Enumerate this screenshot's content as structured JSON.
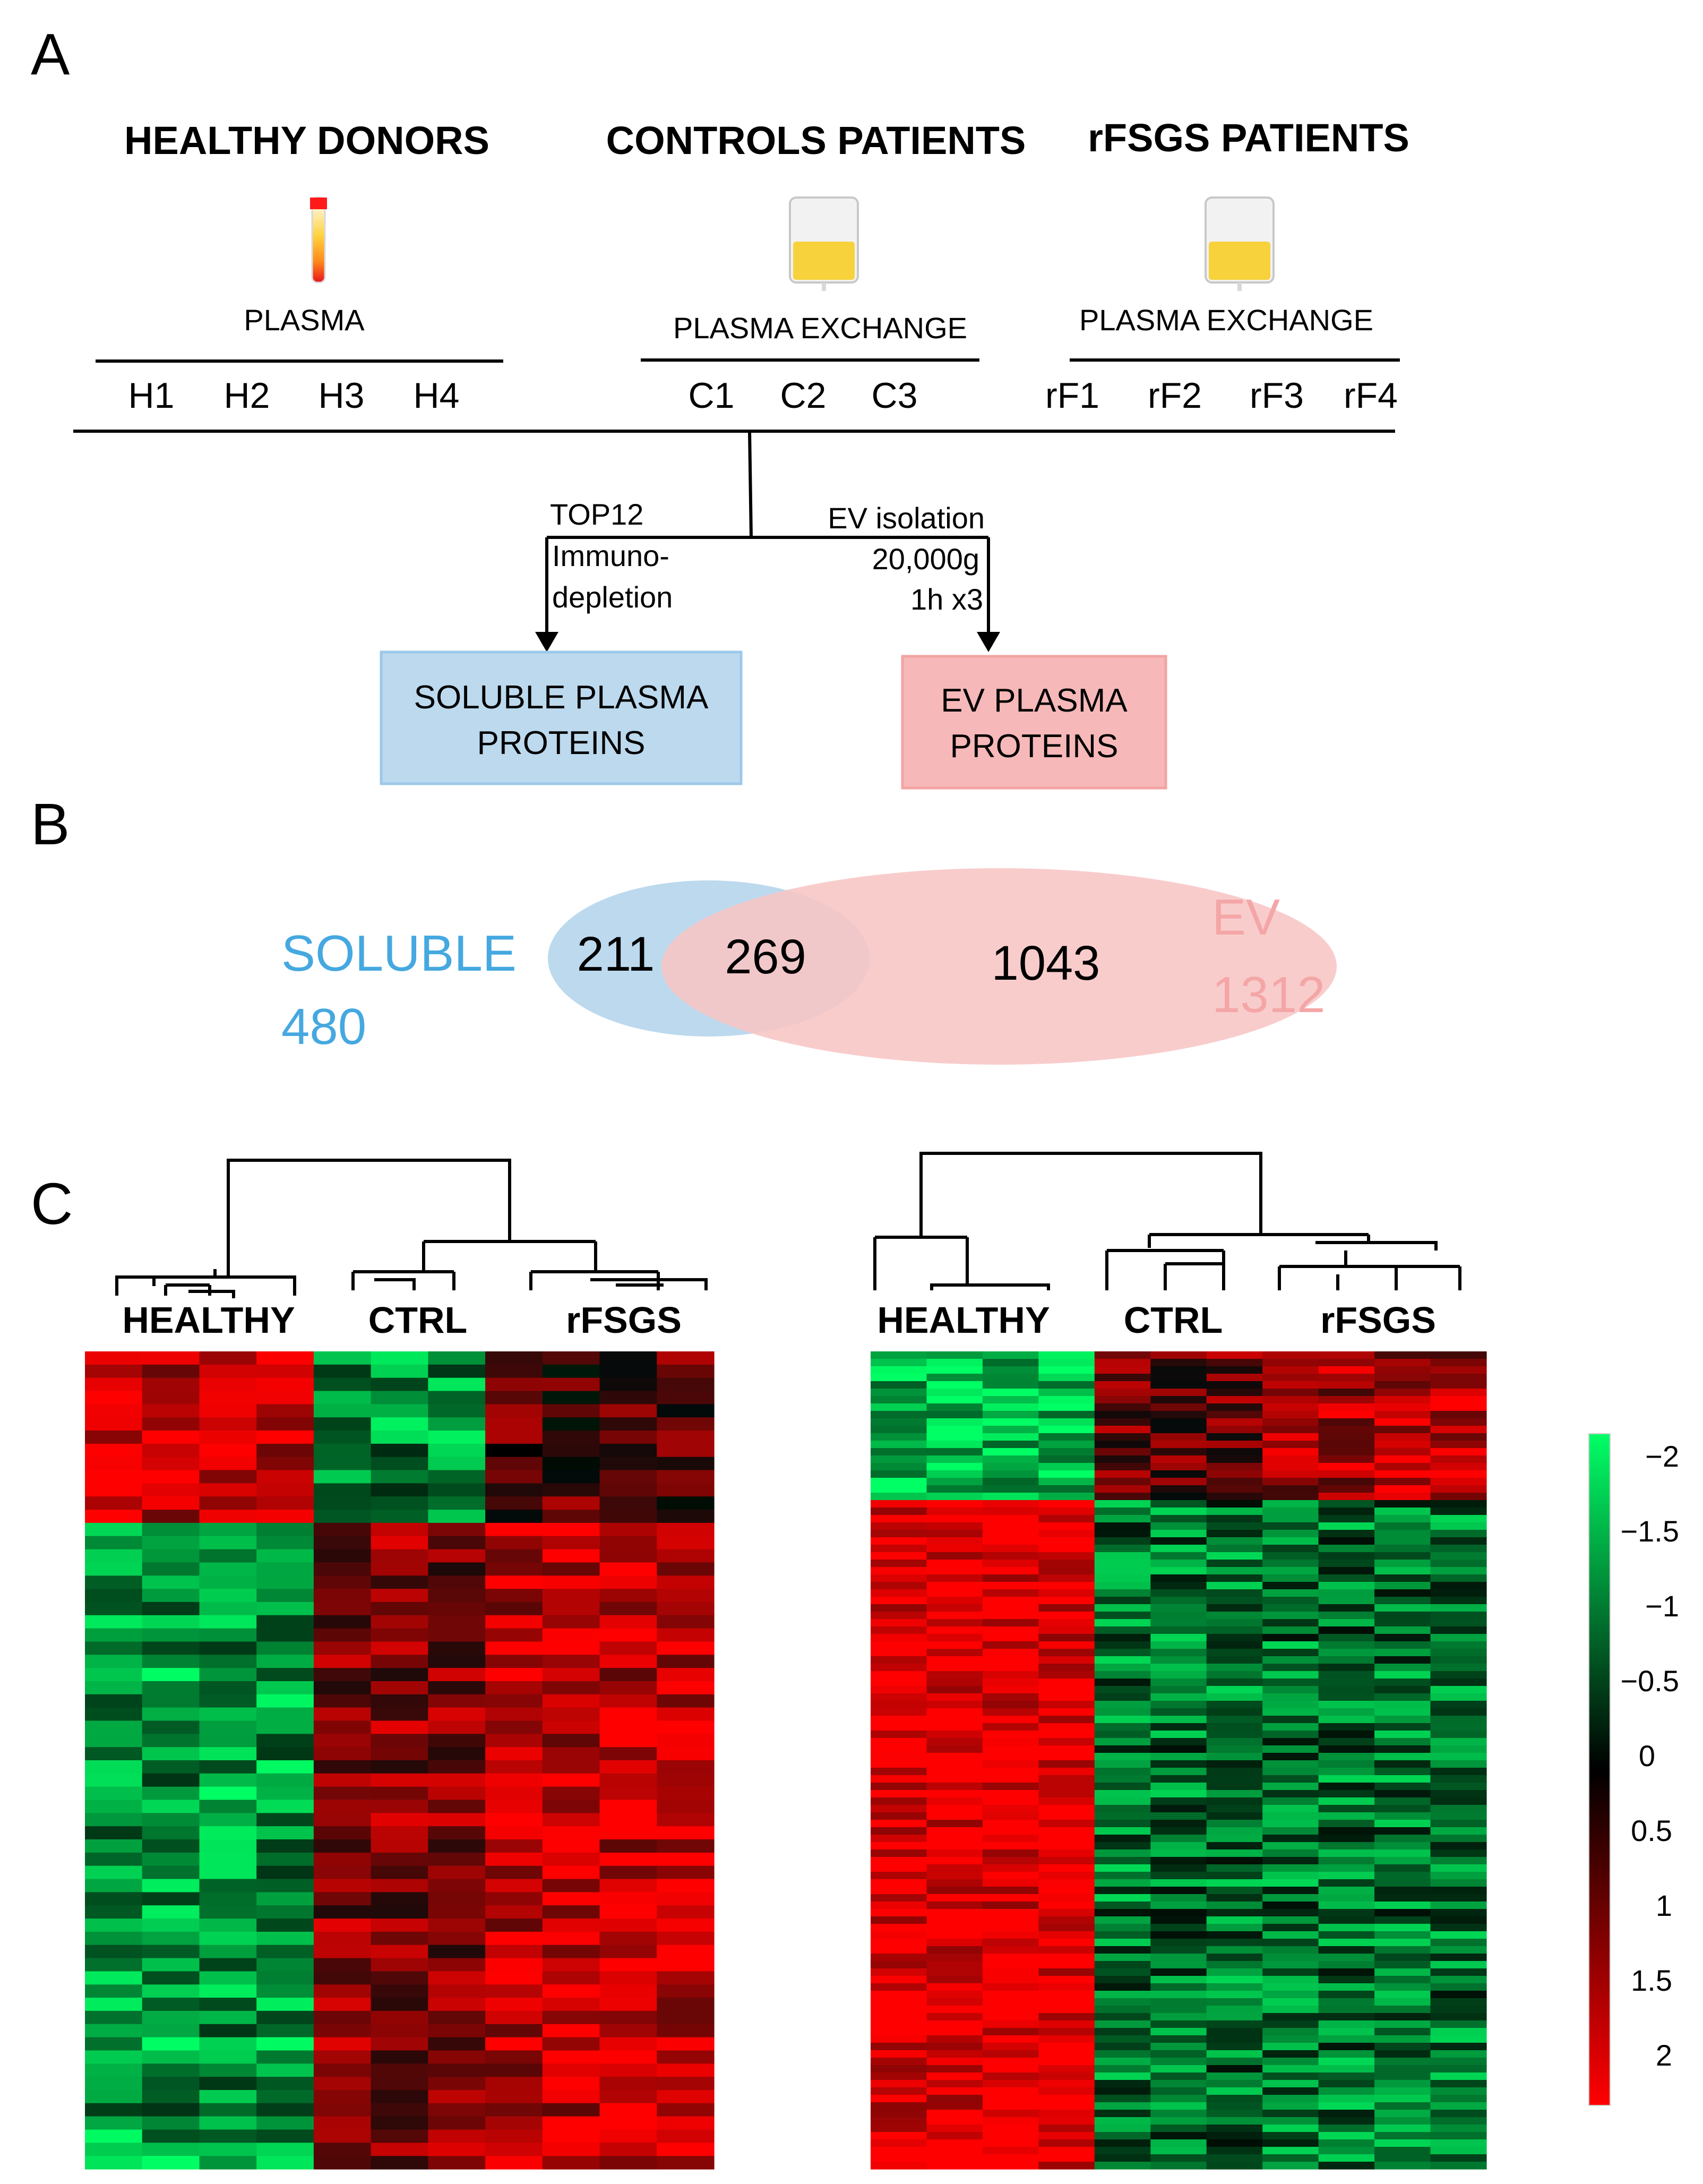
{
  "panels": {
    "a": "A",
    "b": "B",
    "c": "C"
  },
  "panel_a": {
    "groups": [
      {
        "title": "HEALTHY DONORS",
        "source": "PLASMA",
        "samples": [
          "H1",
          "H2",
          "H3",
          "H4"
        ]
      },
      {
        "title": "CONTROLS PATIENTS",
        "source": "PLASMA EXCHANGE",
        "samples": [
          "C1",
          "C2",
          "C3"
        ]
      },
      {
        "title": "rFSGS PATIENTS",
        "source": "PLASMA EXCHANGE",
        "samples": [
          "rF1",
          "rF2",
          "rF3",
          "rF4"
        ]
      }
    ],
    "left_branch": {
      "line1": "TOP12",
      "line2": "Immuno-",
      "line3": "depletion"
    },
    "right_branch": {
      "line1": "EV isolation",
      "line2": "20,000g",
      "line3": "1h x3"
    },
    "boxes": {
      "soluble": {
        "line1": "SOLUBLE PLASMA",
        "line2": "PROTEINS",
        "color": "#bcd9ee",
        "border": "#9cc8ea"
      },
      "ev": {
        "line1": "EV PLASMA",
        "line2": "PROTEINS",
        "color": "#f6b8b8",
        "border": "#f3a3a3"
      }
    }
  },
  "panel_b": {
    "soluble": {
      "label": "SOLUBLE",
      "total": "480",
      "color": "#45a8e0",
      "fill": "#bcd9ee"
    },
    "ev": {
      "label": "EV",
      "total": "1312",
      "color": "#f4a6a6",
      "fill": "#f8c5c5"
    },
    "soluble_only": "211",
    "overlap": "269",
    "ev_only": "1043"
  },
  "panel_c": {
    "heatmaps": [
      {
        "groups": [
          {
            "label": "HEALTHY",
            "n": 4
          },
          {
            "label": "CTRL",
            "n": 3
          },
          {
            "label": "rFSGS",
            "n": 4
          }
        ]
      },
      {
        "groups": [
          {
            "label": "HEALTHY",
            "n": 4
          },
          {
            "label": "CTRL",
            "n": 3
          },
          {
            "label": "rFSGS",
            "n": 4
          }
        ]
      }
    ],
    "colorbar": {
      "labels": [
        "−2",
        "−1.5",
        "−1",
        "−0.5",
        "0",
        "0.5",
        "1",
        "1.5",
        "2"
      ],
      "top_color": "#00ff66",
      "mid_color": "#000000",
      "bottom_color": "#ff0000"
    }
  }
}
